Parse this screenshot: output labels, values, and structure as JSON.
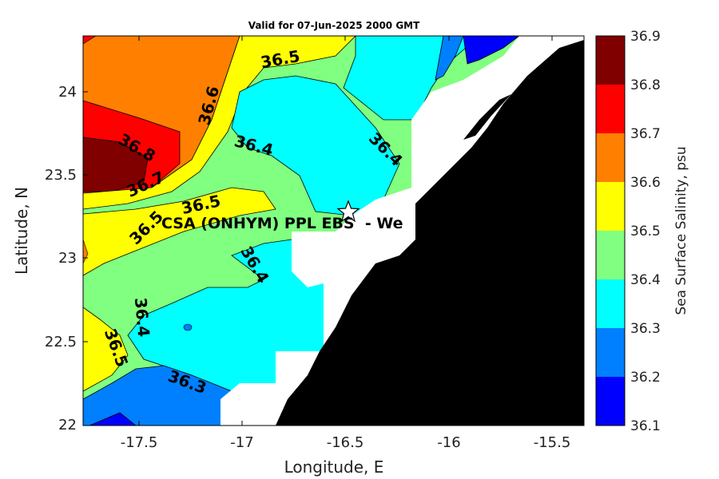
{
  "title": "Valid for 07-Jun-2025 2000 GMT",
  "axes": {
    "xlabel": "Longitude, E",
    "ylabel": "Latitude, N",
    "xticks": [
      "-17.5",
      "-17",
      "-16.5",
      "-16",
      "-15.5"
    ],
    "yticks": [
      "24",
      "23.5",
      "23",
      "22.5",
      "22"
    ],
    "xlim": [
      -17.78,
      -15.35
    ],
    "ylim": [
      21.99,
      24.33
    ]
  },
  "colorbar": {
    "label": "Sea Surface Salinity, psu",
    "levels": [
      "36.9",
      "36.8",
      "36.7",
      "36.6",
      "36.5",
      "36.4",
      "36.3",
      "36.2",
      "36.1"
    ],
    "colors": [
      "#800000",
      "#ff0000",
      "#ff8000",
      "#ffff00",
      "#80ff80",
      "#00ffff",
      "#0080ff",
      "#0000ff"
    ]
  },
  "station": {
    "label": "CSA (ONHYM) PPL EBS  - We",
    "marker": "star-icon"
  },
  "contour_labels": [
    {
      "text": "36.5"
    },
    {
      "text": "36.6"
    },
    {
      "text": "36.8"
    },
    {
      "text": "36.7"
    },
    {
      "text": "36.5"
    },
    {
      "text": "36.5"
    },
    {
      "text": "36.4"
    },
    {
      "text": "36.4"
    },
    {
      "text": "36.4"
    },
    {
      "text": "36.4"
    },
    {
      "text": "36.5"
    },
    {
      "text": "36.3"
    }
  ],
  "colors": {
    "land": "#000000",
    "nodata": "#ffffff"
  }
}
